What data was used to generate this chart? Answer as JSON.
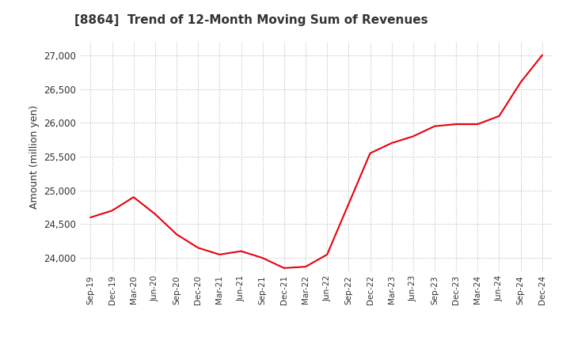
{
  "title": "[8864]  Trend of 12-Month Moving Sum of Revenues",
  "ylabel": "Amount (million yen)",
  "ylim": [
    23800,
    27200
  ],
  "yticks": [
    24000,
    24500,
    25000,
    25500,
    26000,
    26500,
    27000
  ],
  "line_color": "#e8000d",
  "bg_color": "#ffffff",
  "grid_color": "#bbbbbb",
  "title_color": "#333333",
  "x_labels": [
    "Sep-19",
    "Dec-19",
    "Mar-20",
    "Jun-20",
    "Sep-20",
    "Dec-20",
    "Mar-21",
    "Jun-21",
    "Sep-21",
    "Dec-21",
    "Mar-22",
    "Jun-22",
    "Sep-22",
    "Dec-22",
    "Mar-23",
    "Jun-23",
    "Sep-23",
    "Dec-23",
    "Mar-24",
    "Jun-24",
    "Sep-24",
    "Dec-24"
  ],
  "values": [
    24600,
    24700,
    24900,
    24650,
    24350,
    24150,
    24050,
    24100,
    24000,
    23850,
    23870,
    24050,
    24800,
    25550,
    25700,
    25800,
    25950,
    25980,
    25980,
    26100,
    26600,
    27000
  ]
}
